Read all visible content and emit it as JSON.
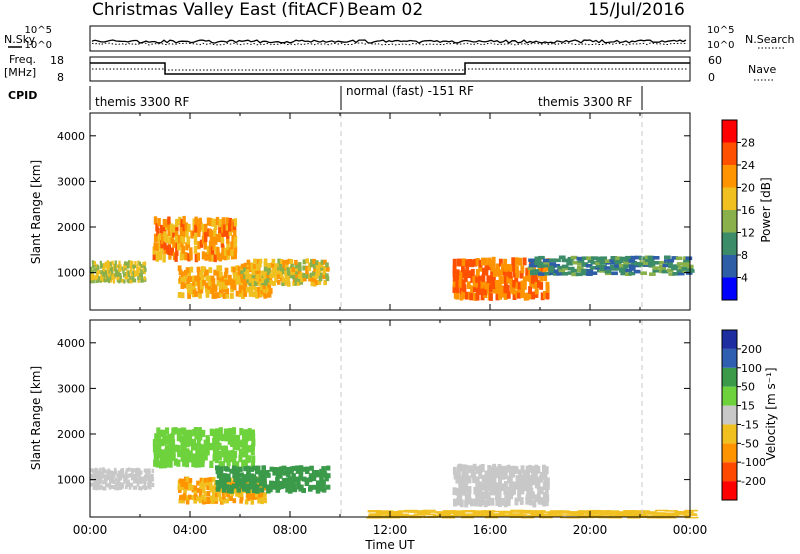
{
  "header": {
    "title": "Christmas Valley East (fitACF)",
    "beam": "Beam 02",
    "date": "15/Jul/2016"
  },
  "summary": {
    "nsky_label": "N.Sky",
    "nsearch_label": "N.Search",
    "log_top": "10^5",
    "log_bottom": "10^0",
    "freq_label_1": "Freq.",
    "freq_label_2": "[MHz]",
    "freq_ticks": [
      "18",
      "8"
    ],
    "nave_label": "Nave",
    "nave_ticks": [
      "60",
      "0"
    ],
    "cpid_label": "CPID",
    "cpid_segments": [
      "themis 3300 RF",
      "normal (fast) -151 RF",
      "themis 3300 RF"
    ]
  },
  "colors": {
    "power": [
      "#0000ff",
      "#2e5fa6",
      "#3c8c6a",
      "#8ab04c",
      "#f0c020",
      "#ff9400",
      "#ff5000",
      "#ff0000"
    ],
    "velocity": [
      "#ff0000",
      "#ff4800",
      "#ff9400",
      "#f0c020",
      "#c8c8c8",
      "#6ed23c",
      "#3a9a4a",
      "#2e5fb0",
      "#1e2ea0"
    ]
  },
  "chart_data": [
    {
      "type": "heatmap",
      "name": "Power",
      "ylabel": "Slant Range [km]",
      "ylim": [
        180,
        4500
      ],
      "yticks": [
        "1000",
        "2000",
        "3000",
        "4000"
      ],
      "xlim_hours": [
        0,
        24
      ],
      "colorbar_label": "Power [dB]",
      "colorbar_ticks": [
        "4",
        "8",
        "12",
        "16",
        "20",
        "24",
        "28"
      ],
      "colorbar_range": [
        0,
        32
      ],
      "features": [
        {
          "t_start": 0.0,
          "t_end": 2.2,
          "r_start": 850,
          "r_end": 1300,
          "value": 16
        },
        {
          "t_start": 2.5,
          "t_end": 5.8,
          "r_start": 1400,
          "r_end": 2300,
          "value": 22
        },
        {
          "t_start": 3.5,
          "t_end": 7.2,
          "r_start": 550,
          "r_end": 1200,
          "value": 20
        },
        {
          "t_start": 6.0,
          "t_end": 9.5,
          "r_start": 800,
          "r_end": 1350,
          "value": 18
        },
        {
          "t_start": 14.5,
          "t_end": 18.3,
          "r_start": 550,
          "r_end": 1400,
          "value": 24
        },
        {
          "t_start": 17.5,
          "t_end": 24.0,
          "r_start": 1000,
          "r_end": 1400,
          "value": 10
        }
      ]
    },
    {
      "type": "heatmap",
      "name": "Velocity",
      "ylabel": "Slant Range [km]",
      "ylim": [
        180,
        4500
      ],
      "yticks": [
        "1000",
        "2000",
        "3000",
        "4000"
      ],
      "xlim_hours": [
        0,
        24
      ],
      "xticks": [
        "00:00",
        "04:00",
        "08:00",
        "12:00",
        "16:00",
        "20:00",
        "00:00"
      ],
      "xlabel": "Time UT",
      "colorbar_label": "Velocity [m s⁻¹]",
      "colorbar_ticks": [
        "200",
        "100",
        "50",
        "15",
        "-15",
        "-50",
        "-100",
        "-200"
      ],
      "features": [
        {
          "t_start": 0.0,
          "t_end": 2.5,
          "r_start": 850,
          "r_end": 1300,
          "value": 0
        },
        {
          "t_start": 2.5,
          "t_end": 6.5,
          "r_start": 1400,
          "r_end": 2200,
          "value": 40
        },
        {
          "t_start": 3.5,
          "t_end": 7.0,
          "r_start": 550,
          "r_end": 1100,
          "value": -50
        },
        {
          "t_start": 5.0,
          "t_end": 9.5,
          "r_start": 800,
          "r_end": 1350,
          "value": 60
        },
        {
          "t_start": 14.5,
          "t_end": 18.3,
          "r_start": 550,
          "r_end": 1400,
          "value": 0
        },
        {
          "t_start": 11.0,
          "t_end": 24.0,
          "r_start": 180,
          "r_end": 350,
          "value": -40
        }
      ]
    }
  ]
}
